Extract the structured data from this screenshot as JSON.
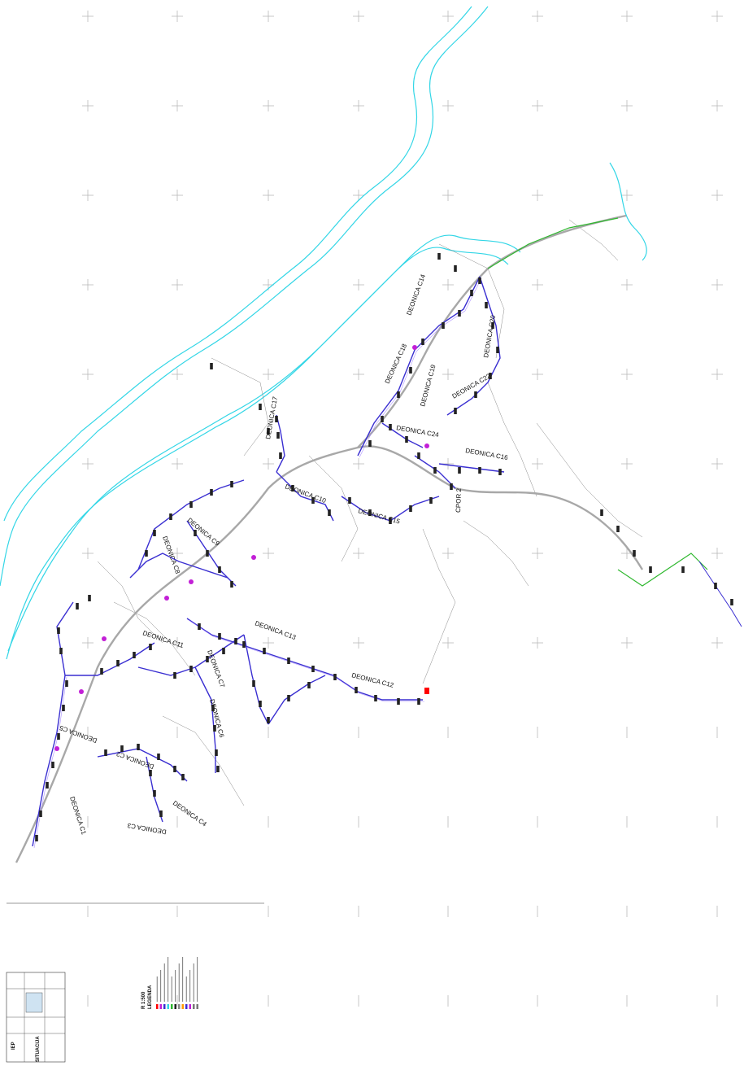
{
  "colors": {
    "river": "#33d6e6",
    "pipe": "#3a2fd1",
    "pipe_glow": "#9b7bff",
    "road": "#a8a8a8",
    "grid": "#b9b9b9",
    "parcel": "#8a8a8a",
    "node": "#c21fd6",
    "green_pipe": "#2fb82f",
    "house": "#222222",
    "marker": "#ff0000"
  },
  "map": {
    "section_labels": [
      "DEONICA C1",
      "DEONICA C2",
      "DEONICA C3",
      "DEONICA C4",
      "DEONICA C5",
      "DEONICA C6",
      "DEONICA C7",
      "DEONICA C8",
      "DEONICA C9",
      "DEONICA C10",
      "DEONICA C11",
      "DEONICA C12",
      "DEONICA C13",
      "DEONICA C14",
      "DEONICA C15",
      "DEONICA C16",
      "DEONICA C17",
      "DEONICA C18",
      "DEONICA C19",
      "DEONICA C20",
      "DEONICA C22",
      "DEONICA C24"
    ],
    "pump_label": "CPOR 2"
  },
  "legend": {
    "scale": "R 1:500",
    "title": "LEGENDA"
  },
  "title_block": {
    "logo": "IEP",
    "title": "SITUACIJA"
  }
}
